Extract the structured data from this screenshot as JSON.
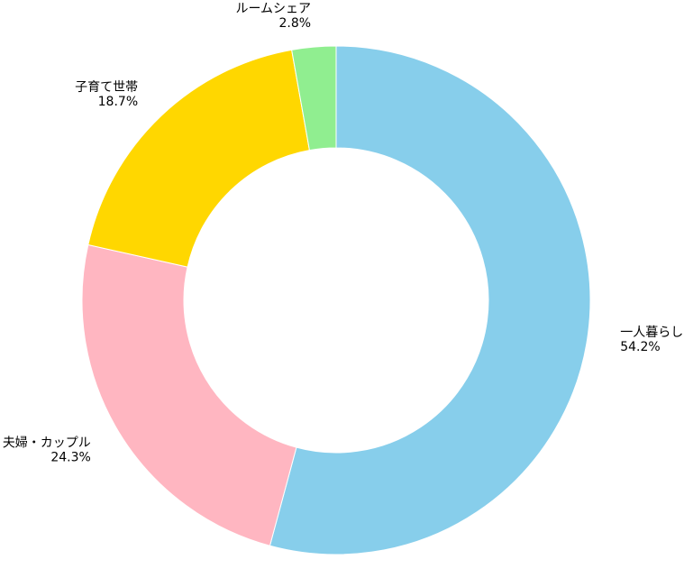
{
  "chart_data": {
    "type": "pie",
    "donut": true,
    "title": "",
    "categories": [
      "一人暮らし",
      "夫婦・カップル",
      "子育て世帯",
      "ルームシェア"
    ],
    "values": [
      54.2,
      24.3,
      18.7,
      2.8
    ],
    "value_labels": [
      "54.2%",
      "24.3%",
      "18.7%",
      "2.8%"
    ],
    "colors": [
      "#87CEEB",
      "#FFB6C1",
      "#FFD700",
      "#90EE90"
    ],
    "start_angle_deg": 90,
    "direction": "clockwise",
    "legend": "none"
  }
}
